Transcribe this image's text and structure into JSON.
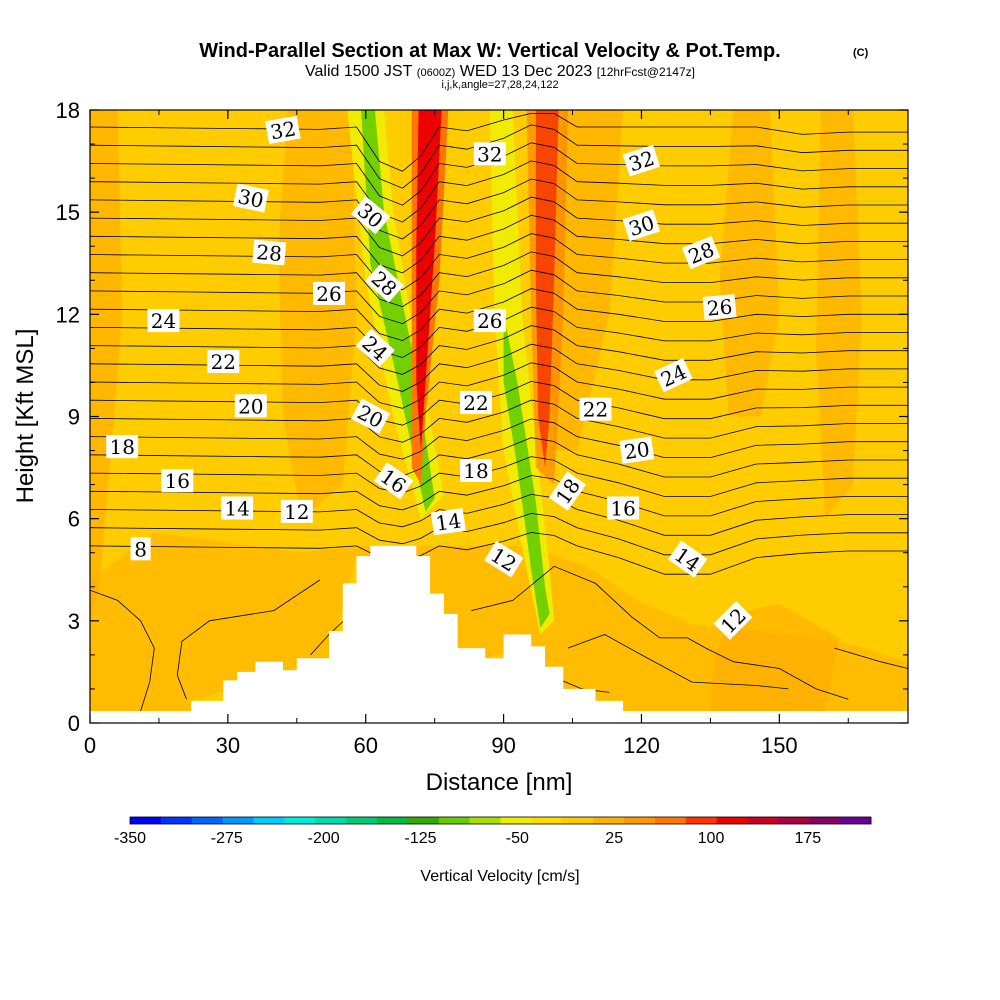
{
  "header": {
    "title_main": "Wind-Parallel Section at Max W: Vertical Velocity & Pot.Temp.",
    "title_mark": "(C)",
    "subtitle_a": "Valid 1500 JST",
    "subtitle_b": "(0600Z)",
    "subtitle_c": "WED 13 Dec 2023",
    "subtitle_d": "[12hrFcst@2147z]",
    "subtitle_small": "i,j,k,angle=27,28,24,122"
  },
  "colors": {
    "background_fill": "#FFCC00",
    "orange": "#FFA500",
    "red": "#EE0000",
    "green": "#66CC00",
    "terrain": "#FFFFFF",
    "contour": "#000000"
  },
  "chart_data": {
    "type": "heatmap",
    "title": "Wind-Parallel Section at Max W: Vertical Velocity & Pot.Temp.",
    "xlabel": "Distance [nm]",
    "ylabel": "Height [Kft MSL]",
    "xlim": [
      0,
      178
    ],
    "ylim": [
      0,
      18
    ],
    "x_ticks": [
      0,
      30,
      60,
      90,
      120,
      150
    ],
    "y_ticks": [
      0,
      3,
      6,
      9,
      12,
      15,
      18
    ],
    "colorbar": {
      "label": "Vertical Velocity [cm/s]",
      "ticks": [
        -350,
        -275,
        -200,
        -125,
        -50,
        25,
        100,
        175
      ],
      "levels": [
        -350,
        -325,
        -300,
        -275,
        -250,
        -225,
        -200,
        -175,
        -150,
        -125,
        -100,
        -75,
        -50,
        -25,
        0,
        25,
        50,
        75,
        100,
        125,
        150,
        175,
        200
      ],
      "colors": [
        "#0000FF",
        "#0033FF",
        "#0066FF",
        "#0099FF",
        "#00CCFF",
        "#00EEDD",
        "#00DDAA",
        "#00CC77",
        "#00BB44",
        "#33AA00",
        "#66CC00",
        "#AADD00",
        "#EEEE00",
        "#FFDD00",
        "#FFCC00",
        "#FFB300",
        "#FF9900",
        "#FF7700",
        "#FF3300",
        "#EE0000",
        "#CC0022",
        "#AA0044",
        "#880066",
        "#660099"
      ]
    },
    "theta_contour_labels": [
      {
        "text": "32",
        "x": 42,
        "y": 17.4,
        "angle": -10
      },
      {
        "text": "32",
        "x": 87,
        "y": 16.7,
        "angle": 0
      },
      {
        "text": "32",
        "x": 120,
        "y": 16.5,
        "angle": -18
      },
      {
        "text": "30",
        "x": 35,
        "y": 15.4,
        "angle": 12
      },
      {
        "text": "30",
        "x": 61,
        "y": 14.9,
        "angle": 40
      },
      {
        "text": "30",
        "x": 120,
        "y": 14.6,
        "angle": -18
      },
      {
        "text": "28",
        "x": 39,
        "y": 13.8,
        "angle": 5
      },
      {
        "text": "28",
        "x": 64,
        "y": 12.9,
        "angle": 42
      },
      {
        "text": "28",
        "x": 133,
        "y": 13.8,
        "angle": -22
      },
      {
        "text": "26",
        "x": 52,
        "y": 12.6,
        "angle": 0
      },
      {
        "text": "26",
        "x": 87,
        "y": 11.8,
        "angle": 0
      },
      {
        "text": "26",
        "x": 137,
        "y": 12.2,
        "angle": -5
      },
      {
        "text": "24",
        "x": 16,
        "y": 11.8,
        "angle": 0
      },
      {
        "text": "24",
        "x": 62,
        "y": 11.0,
        "angle": 42
      },
      {
        "text": "24",
        "x": 127,
        "y": 10.2,
        "angle": -25
      },
      {
        "text": "22",
        "x": 29,
        "y": 10.6,
        "angle": 0
      },
      {
        "text": "22",
        "x": 84,
        "y": 9.4,
        "angle": 0
      },
      {
        "text": "22",
        "x": 110,
        "y": 9.2,
        "angle": 0
      },
      {
        "text": "20",
        "x": 35,
        "y": 9.3,
        "angle": 0
      },
      {
        "text": "20",
        "x": 61,
        "y": 9.0,
        "angle": 28
      },
      {
        "text": "20",
        "x": 119,
        "y": 8.0,
        "angle": -8
      },
      {
        "text": "18",
        "x": 7,
        "y": 8.1,
        "angle": 0
      },
      {
        "text": "18",
        "x": 84,
        "y": 7.4,
        "angle": 0
      },
      {
        "text": "18",
        "x": 104,
        "y": 6.8,
        "angle": -55
      },
      {
        "text": "16",
        "x": 19,
        "y": 7.1,
        "angle": 0
      },
      {
        "text": "16",
        "x": 66,
        "y": 7.1,
        "angle": 35
      },
      {
        "text": "16",
        "x": 116,
        "y": 6.3,
        "angle": 0
      },
      {
        "text": "14",
        "x": 32,
        "y": 6.3,
        "angle": 0
      },
      {
        "text": "14",
        "x": 78,
        "y": 5.9,
        "angle": -8
      },
      {
        "text": "14",
        "x": 130,
        "y": 4.8,
        "angle": 35
      },
      {
        "text": "12",
        "x": 45,
        "y": 6.2,
        "angle": 0
      },
      {
        "text": "12",
        "x": 90,
        "y": 4.8,
        "angle": 32
      },
      {
        "text": "12",
        "x": 140,
        "y": 3.0,
        "angle": -45
      },
      {
        "text": "8",
        "x": 11,
        "y": 5.1,
        "angle": 0
      }
    ]
  }
}
